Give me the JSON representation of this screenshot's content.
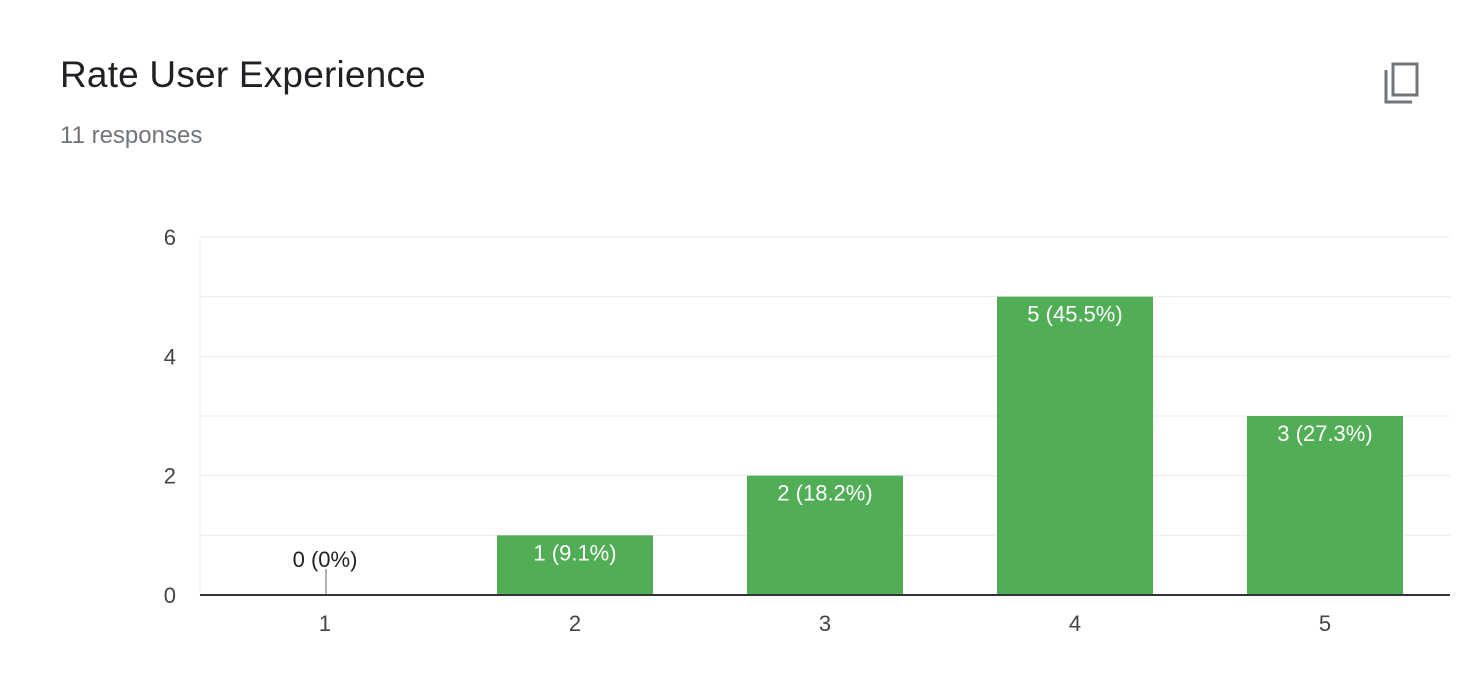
{
  "card": {
    "title": "Rate User Experience",
    "subtitle": "11 responses",
    "copy_icon": "copy-icon"
  },
  "colors": {
    "bar": "#52ae56",
    "gridline": "#ebebeb",
    "axis": "#333333",
    "tick_text": "#444444",
    "label_inside": "#ffffff",
    "label_outside": "#222222"
  },
  "chart_data": {
    "type": "bar",
    "categories": [
      "1",
      "2",
      "3",
      "4",
      "5"
    ],
    "values": [
      0,
      1,
      2,
      5,
      3
    ],
    "labels": [
      "0 (0%)",
      "1 (9.1%)",
      "2 (18.2%)",
      "5 (45.5%)",
      "3 (27.3%)"
    ],
    "title": "Rate User Experience",
    "subtitle": "11 responses",
    "ylim": [
      0,
      6
    ],
    "yticks": [
      0,
      2,
      4,
      6
    ],
    "minor_gridlines": [
      1,
      3,
      5
    ],
    "grid": true,
    "legend": "none"
  }
}
